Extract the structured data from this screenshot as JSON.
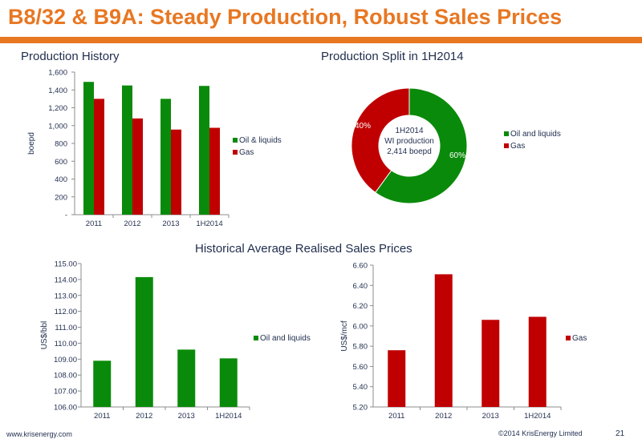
{
  "slide": {
    "title": "B8/32 & B9A: Steady Production, Robust Sales Prices",
    "production_history_title": "Production History",
    "production_split_title": "Production Split in 1H2014",
    "sales_prices_title": "Historical Average Realised Sales Prices",
    "footer_url": "www.krisenergy.com",
    "footer_copyright": "©2014 KrisEnergy Limited",
    "page_number": "21"
  },
  "colors": {
    "title": "#e87722",
    "green": "#0a8a0a",
    "red": "#c00000",
    "axis": "#8c8c8c",
    "text": "#1f2d4d"
  },
  "chart_data": [
    {
      "id": "production_history",
      "type": "bar",
      "title": "Production History",
      "categories": [
        "2011",
        "2012",
        "2013",
        "1H2014"
      ],
      "series": [
        {
          "name": "Oil & liquids",
          "color": "#0a8a0a",
          "values": [
            1490,
            1450,
            1300,
            1445
          ]
        },
        {
          "name": "Gas",
          "color": "#c00000",
          "values": [
            1300,
            1080,
            955,
            975
          ]
        }
      ],
      "ylabel": "boepd",
      "ylim": [
        0,
        1600
      ],
      "yticks": [
        "-",
        "200",
        "400",
        "600",
        "800",
        "1,000",
        "1,200",
        "1,400",
        "1,600"
      ],
      "legend": "right"
    },
    {
      "id": "production_split",
      "type": "pie",
      "title": "Production Split in 1H2014",
      "slices": [
        {
          "name": "Oil and liquids",
          "value": 60,
          "label": "60%",
          "color": "#0a8a0a"
        },
        {
          "name": "Gas",
          "value": 40,
          "label": "40%",
          "color": "#c00000"
        }
      ],
      "center_lines": [
        "1H2014",
        "WI production",
        "2,414 boepd"
      ],
      "legend": "right"
    },
    {
      "id": "oil_prices",
      "type": "bar",
      "categories": [
        "2011",
        "2012",
        "2013",
        "1H2014"
      ],
      "series": [
        {
          "name": "Oil and liquids",
          "color": "#0a8a0a",
          "values": [
            108.9,
            114.15,
            109.6,
            109.05
          ]
        }
      ],
      "ylabel": "US$/bbl",
      "ylim": [
        106,
        115
      ],
      "yticks": [
        "106.00",
        "107.00",
        "108.00",
        "109.00",
        "110.00",
        "111.00",
        "112.00",
        "113.00",
        "114.00",
        "115.00"
      ],
      "legend": "right"
    },
    {
      "id": "gas_prices",
      "type": "bar",
      "categories": [
        "2011",
        "2012",
        "2013",
        "1H2014"
      ],
      "series": [
        {
          "name": "Gas",
          "color": "#c00000",
          "values": [
            5.76,
            6.51,
            6.06,
            6.09
          ]
        }
      ],
      "ylabel": "US$/mcf",
      "ylim": [
        5.2,
        6.6
      ],
      "yticks": [
        "5.20",
        "5.40",
        "5.60",
        "5.80",
        "6.00",
        "6.20",
        "6.40",
        "6.60"
      ],
      "legend": "right"
    }
  ]
}
